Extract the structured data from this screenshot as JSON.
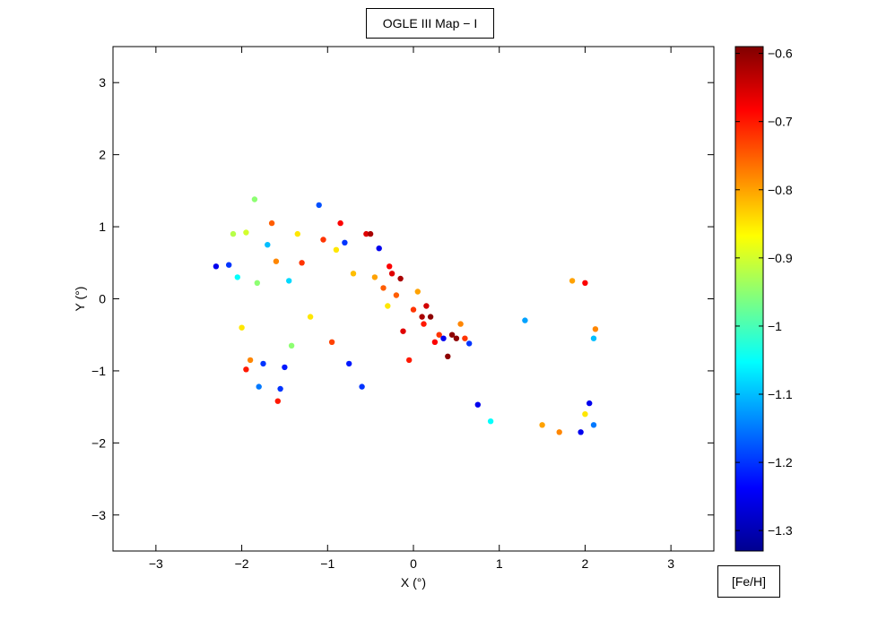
{
  "chart_data": {
    "type": "scatter",
    "title": "OGLE III Map − I",
    "xlabel": "X (°)",
    "ylabel": "Y (°)",
    "xlim": [
      -3.5,
      3.5
    ],
    "ylim": [
      -3.5,
      3.5
    ],
    "xticks": [
      -3,
      -2,
      -1,
      0,
      1,
      2,
      3
    ],
    "yticks": [
      -3,
      -2,
      -1,
      0,
      1,
      2,
      3
    ],
    "grid": false,
    "colorbar": {
      "label": "[Fe/H]",
      "range": [
        -1.33,
        -0.59
      ],
      "ticks": [
        -1.3,
        -1.2,
        -1.1,
        -1.0,
        -0.9,
        -0.8,
        -0.7,
        -0.6
      ],
      "colormap": "jet"
    },
    "point_color_metric": "[Fe/H]",
    "points": [
      [
        -2.3,
        0.45,
        -1.25
      ],
      [
        -2.15,
        0.47,
        -1.2
      ],
      [
        -2.1,
        0.9,
        -0.92
      ],
      [
        -2.05,
        0.3,
        -1.05
      ],
      [
        -2.0,
        -0.4,
        -0.85
      ],
      [
        -1.95,
        0.92,
        -0.9
      ],
      [
        -1.95,
        -0.98,
        -0.7
      ],
      [
        -1.9,
        -0.85,
        -0.78
      ],
      [
        -1.85,
        1.38,
        -0.95
      ],
      [
        -1.82,
        0.22,
        -0.95
      ],
      [
        -1.8,
        -1.22,
        -1.15
      ],
      [
        -1.75,
        -0.9,
        -1.2
      ],
      [
        -1.7,
        0.75,
        -1.1
      ],
      [
        -1.65,
        1.05,
        -0.75
      ],
      [
        -1.6,
        0.52,
        -0.78
      ],
      [
        -1.58,
        -1.42,
        -0.7
      ],
      [
        -1.55,
        -1.25,
        -1.2
      ],
      [
        -1.5,
        -0.95,
        -1.22
      ],
      [
        -1.45,
        0.25,
        -1.08
      ],
      [
        -1.42,
        -0.65,
        -0.95
      ],
      [
        -1.35,
        0.9,
        -0.85
      ],
      [
        -1.3,
        0.5,
        -0.72
      ],
      [
        -1.2,
        -0.25,
        -0.85
      ],
      [
        -1.1,
        1.3,
        -1.18
      ],
      [
        -1.05,
        0.82,
        -0.72
      ],
      [
        -0.95,
        -0.6,
        -0.73
      ],
      [
        -0.9,
        0.68,
        -0.85
      ],
      [
        -0.85,
        1.05,
        -0.68
      ],
      [
        -0.8,
        0.78,
        -1.2
      ],
      [
        -0.75,
        -0.9,
        -1.22
      ],
      [
        -0.7,
        0.35,
        -0.82
      ],
      [
        -0.6,
        -1.22,
        -1.2
      ],
      [
        -0.55,
        0.9,
        -0.66
      ],
      [
        -0.5,
        0.9,
        -0.62
      ],
      [
        -0.45,
        0.3,
        -0.8
      ],
      [
        -0.4,
        0.7,
        -1.25
      ],
      [
        -0.35,
        0.15,
        -0.75
      ],
      [
        -0.3,
        -0.1,
        -0.85
      ],
      [
        -0.28,
        0.45,
        -0.68
      ],
      [
        -0.25,
        0.35,
        -0.66
      ],
      [
        -0.2,
        0.05,
        -0.75
      ],
      [
        -0.15,
        0.28,
        -0.62
      ],
      [
        -0.12,
        -0.45,
        -0.66
      ],
      [
        -0.05,
        -0.85,
        -0.7
      ],
      [
        0.0,
        -0.15,
        -0.72
      ],
      [
        0.05,
        0.1,
        -0.8
      ],
      [
        0.1,
        -0.25,
        -0.62
      ],
      [
        0.12,
        -0.35,
        -0.7
      ],
      [
        0.15,
        -0.1,
        -0.65
      ],
      [
        0.2,
        -0.25,
        -0.6
      ],
      [
        0.25,
        -0.6,
        -0.68
      ],
      [
        0.3,
        -0.5,
        -0.72
      ],
      [
        0.35,
        -0.55,
        -1.25
      ],
      [
        0.4,
        -0.8,
        -0.6
      ],
      [
        0.45,
        -0.5,
        -0.6
      ],
      [
        0.5,
        -0.55,
        -0.6
      ],
      [
        0.55,
        -0.35,
        -0.78
      ],
      [
        0.6,
        -0.55,
        -0.72
      ],
      [
        0.65,
        -0.62,
        -1.2
      ],
      [
        0.75,
        -1.47,
        -1.25
      ],
      [
        0.9,
        -1.7,
        -1.05
      ],
      [
        1.3,
        -0.3,
        -1.12
      ],
      [
        1.5,
        -1.75,
        -0.8
      ],
      [
        1.7,
        -1.85,
        -0.78
      ],
      [
        1.85,
        0.25,
        -0.8
      ],
      [
        1.95,
        -1.85,
        -1.25
      ],
      [
        2.0,
        0.22,
        -0.68
      ],
      [
        2.0,
        -1.6,
        -0.85
      ],
      [
        2.05,
        -1.45,
        -1.25
      ],
      [
        2.1,
        -1.75,
        -1.15
      ],
      [
        2.1,
        -0.55,
        -1.1
      ],
      [
        2.12,
        -0.42,
        -0.78
      ]
    ]
  }
}
